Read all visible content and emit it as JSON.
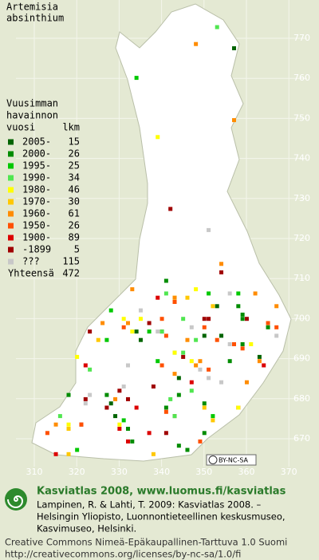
{
  "title": [
    "Artemisia",
    "absinthium"
  ],
  "legend": {
    "heading": [
      "Vuusimman",
      "havainnon",
      "vuosi"
    ],
    "count_heading": "lkm",
    "entries": [
      {
        "label": "2005-",
        "count": 15,
        "color": "#006400"
      },
      {
        "label": "2000-",
        "count": 26,
        "color": "#008c00"
      },
      {
        "label": "1995-",
        "count": 25,
        "color": "#00c800"
      },
      {
        "label": "1990-",
        "count": 34,
        "color": "#50e650"
      },
      {
        "label": "1980-",
        "count": 46,
        "color": "#ffff00"
      },
      {
        "label": "1970-",
        "count": 30,
        "color": "#ffc800"
      },
      {
        "label": "1960-",
        "count": 61,
        "color": "#ff8c00"
      },
      {
        "label": "1950-",
        "count": 26,
        "color": "#ff5000"
      },
      {
        "label": "1900-",
        "count": 89,
        "color": "#dc0000"
      },
      {
        "label": "-1899",
        "count": 5,
        "color": "#a00000"
      },
      {
        "label": "???",
        "count": 115,
        "color": "#c8c8c8"
      }
    ],
    "total": {
      "label": "Yhteensä",
      "count": 472
    }
  },
  "grid": {
    "north": [
      770,
      760,
      750,
      740,
      730,
      720,
      710,
      700,
      690,
      680,
      670
    ],
    "east": [
      310,
      320,
      330,
      340,
      350,
      360,
      370
    ]
  },
  "badge": "BY-NC-SA",
  "footer": {
    "heading": "Kasviatlas 2008, www.luomus.fi/kasviatlas",
    "citation": [
      "Lampinen, R. & Lahti, T. 2009: Kasviatlas 2008. –",
      "Helsingin Yliopisto, Luonnontieteellinen keskusmuseo,",
      "Kasvimuseo, Helsinki."
    ],
    "license": [
      "Creative Commons Nimeä-Epäkaupallinen-Tarttuva 1.0 Suomi",
      "http://creativecommons.org/licenses/by-nc-sa/1.0/fi"
    ]
  }
}
